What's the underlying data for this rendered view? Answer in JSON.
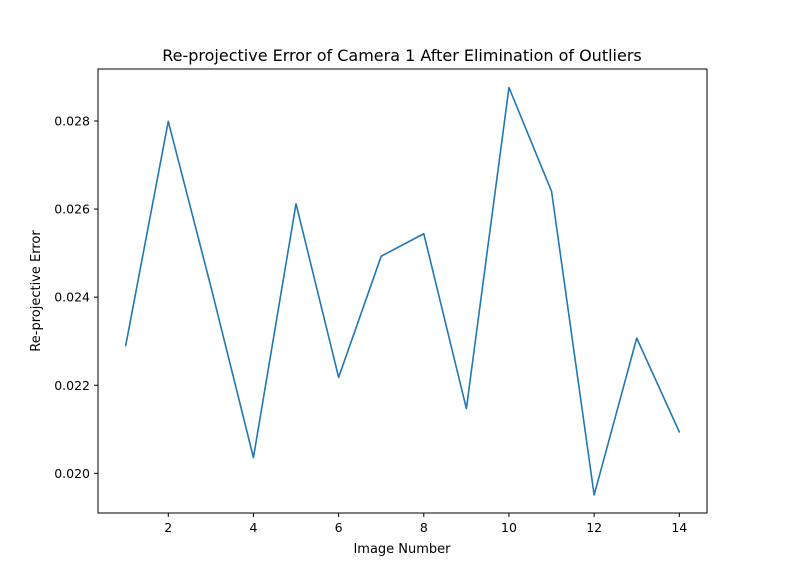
{
  "chart_data": {
    "type": "line",
    "title": "Re-projective Error of Camera 1 After Elimination of Outliers",
    "xlabel": "Image Number",
    "ylabel": "Re-projective Error",
    "xlim": [
      0.35,
      14.65
    ],
    "ylim": [
      0.0191,
      0.02918
    ],
    "xticks": [
      2,
      4,
      6,
      8,
      10,
      12,
      14
    ],
    "xtick_labels": [
      "2",
      "4",
      "6",
      "8",
      "10",
      "12",
      "14"
    ],
    "yticks": [
      0.02,
      0.022,
      0.024,
      0.026,
      0.028
    ],
    "ytick_labels": [
      "0.020",
      "0.022",
      "0.024",
      "0.026",
      "0.028"
    ],
    "grid": false,
    "series": [
      {
        "color": "#1f77b4",
        "x": [
          1,
          2,
          3,
          4,
          5,
          6,
          7,
          8,
          9,
          10,
          11,
          12,
          13,
          14
        ],
        "y": [
          0.0229,
          0.02799,
          0.02424,
          0.02036,
          0.02612,
          0.02218,
          0.02493,
          0.02544,
          0.02147,
          0.02876,
          0.0264,
          0.01951,
          0.02307,
          0.02094
        ]
      }
    ]
  }
}
